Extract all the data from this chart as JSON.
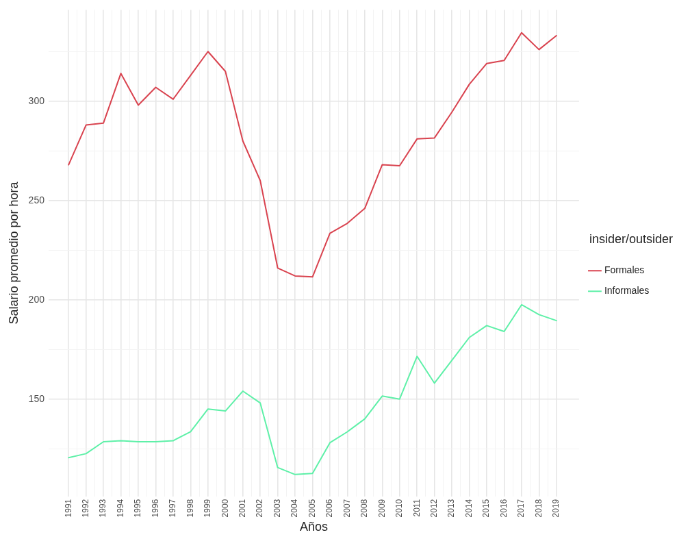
{
  "chart_data": {
    "type": "line",
    "xlabel": "Años",
    "ylabel": "Salario promedio por hora",
    "legend_title": "insider/outsider",
    "legend": "right",
    "grid": true,
    "x": [
      1991,
      1992,
      1993,
      1994,
      1995,
      1996,
      1997,
      1998,
      1999,
      2000,
      2001,
      2002,
      2003,
      2004,
      2005,
      2006,
      2007,
      2008,
      2009,
      2010,
      2011,
      2012,
      2013,
      2014,
      2015,
      2016,
      2017,
      2018,
      2019
    ],
    "xlim": [
      1989.85,
      2020.3
    ],
    "xticks": [
      1991,
      {
        "value": 1991.5,
        "label": null
      },
      1992,
      {
        "value": 1992.5,
        "label": null
      },
      1993,
      {
        "value": 1993.5,
        "label": null
      },
      1994,
      {
        "value": 1994.5,
        "label": null
      },
      1995,
      {
        "value": 1995.5,
        "label": null
      },
      1996,
      {
        "value": 1996.5,
        "label": null
      },
      1997,
      {
        "value": 1997.5,
        "label": null
      },
      1998,
      {
        "value": 1998.5,
        "label": null
      },
      1999,
      {
        "value": 1999.5,
        "label": null
      },
      2000,
      {
        "value": 2000.5,
        "label": null
      },
      2001,
      {
        "value": 2001.5,
        "label": null
      },
      2002,
      {
        "value": 2002.5,
        "label": null
      },
      2003,
      {
        "value": 2003.5,
        "label": null
      },
      2004,
      {
        "value": 2004.5,
        "label": null
      },
      2005,
      {
        "value": 2005.5,
        "label": null
      },
      2006,
      {
        "value": 2006.5,
        "label": null
      },
      2007,
      {
        "value": 2007.5,
        "label": null
      },
      2008,
      {
        "value": 2008.5,
        "label": null
      },
      2009,
      {
        "value": 2009.5,
        "label": null
      },
      2010,
      {
        "value": 2010.5,
        "label": null
      },
      2011,
      {
        "value": 2011.5,
        "label": null
      },
      2012,
      {
        "value": 2012.5,
        "label": null
      },
      2013,
      {
        "value": 2013.5,
        "label": null
      },
      2014,
      {
        "value": 2014.5,
        "label": null
      },
      2015,
      {
        "value": 2015.5,
        "label": null
      },
      2016,
      {
        "value": 2016.5,
        "label": null
      },
      2017,
      {
        "value": 2017.5,
        "label": null
      },
      2018,
      {
        "value": 2018.5,
        "label": null
      },
      2019
    ],
    "ylim": [
      101,
      346
    ],
    "yticks": [
      {
        "value": 125,
        "label": null
      },
      150,
      {
        "value": 175,
        "label": null
      },
      200,
      {
        "value": 225,
        "label": null
      },
      250,
      {
        "value": 275,
        "label": null
      },
      300,
      {
        "value": 325,
        "label": null
      }
    ],
    "marker": "none",
    "line_style": "solid",
    "series": [
      {
        "name": "Formales",
        "color": "#d9434f",
        "values": [
          268,
          288,
          289,
          314,
          298,
          307,
          301,
          313,
          325,
          315,
          280,
          260,
          216,
          212,
          211.5,
          233.5,
          238.5,
          246,
          268,
          267.5,
          281,
          281.5,
          294.5,
          308.5,
          319,
          320.5,
          334.5,
          326,
          333
        ]
      },
      {
        "name": "Informales",
        "color": "#5ef0a8",
        "values": [
          120.5,
          122.5,
          128.5,
          129,
          128.5,
          128.5,
          129,
          133.5,
          145,
          144,
          154,
          148,
          115.5,
          112,
          112.5,
          128,
          133.5,
          140,
          151.5,
          150,
          171.5,
          158,
          169.5,
          181,
          187,
          184,
          197.5,
          192.5,
          189.5
        ]
      }
    ]
  }
}
